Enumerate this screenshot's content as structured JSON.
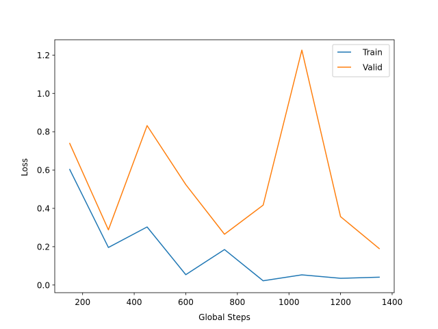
{
  "chart_data": {
    "type": "line",
    "title": "",
    "xlabel": "Global Steps",
    "ylabel": "Loss",
    "xlim": [
      92,
      1408
    ],
    "ylim": [
      -0.04,
      1.28
    ],
    "xticks": [
      200,
      400,
      600,
      800,
      1000,
      1200,
      1400
    ],
    "xtick_labels": [
      "200",
      "400",
      "600",
      "800",
      "1000",
      "1200",
      "1400"
    ],
    "yticks": [
      0.0,
      0.2,
      0.4,
      0.6,
      0.8,
      1.0,
      1.2
    ],
    "ytick_labels": [
      "0.0",
      "0.2",
      "0.4",
      "0.6",
      "0.8",
      "1.0",
      "1.2"
    ],
    "grid": false,
    "legend_position": "top-right",
    "x": [
      150,
      300,
      450,
      600,
      750,
      900,
      1050,
      1200,
      1350
    ],
    "series": [
      {
        "name": "Train",
        "color": "#1f77b4",
        "values": [
          0.603,
          0.196,
          0.303,
          0.054,
          0.185,
          0.022,
          0.053,
          0.035,
          0.041
        ]
      },
      {
        "name": "Valid",
        "color": "#ff7f0e",
        "values": [
          0.739,
          0.288,
          0.832,
          0.524,
          0.265,
          0.417,
          1.226,
          0.357,
          0.19
        ]
      }
    ]
  }
}
